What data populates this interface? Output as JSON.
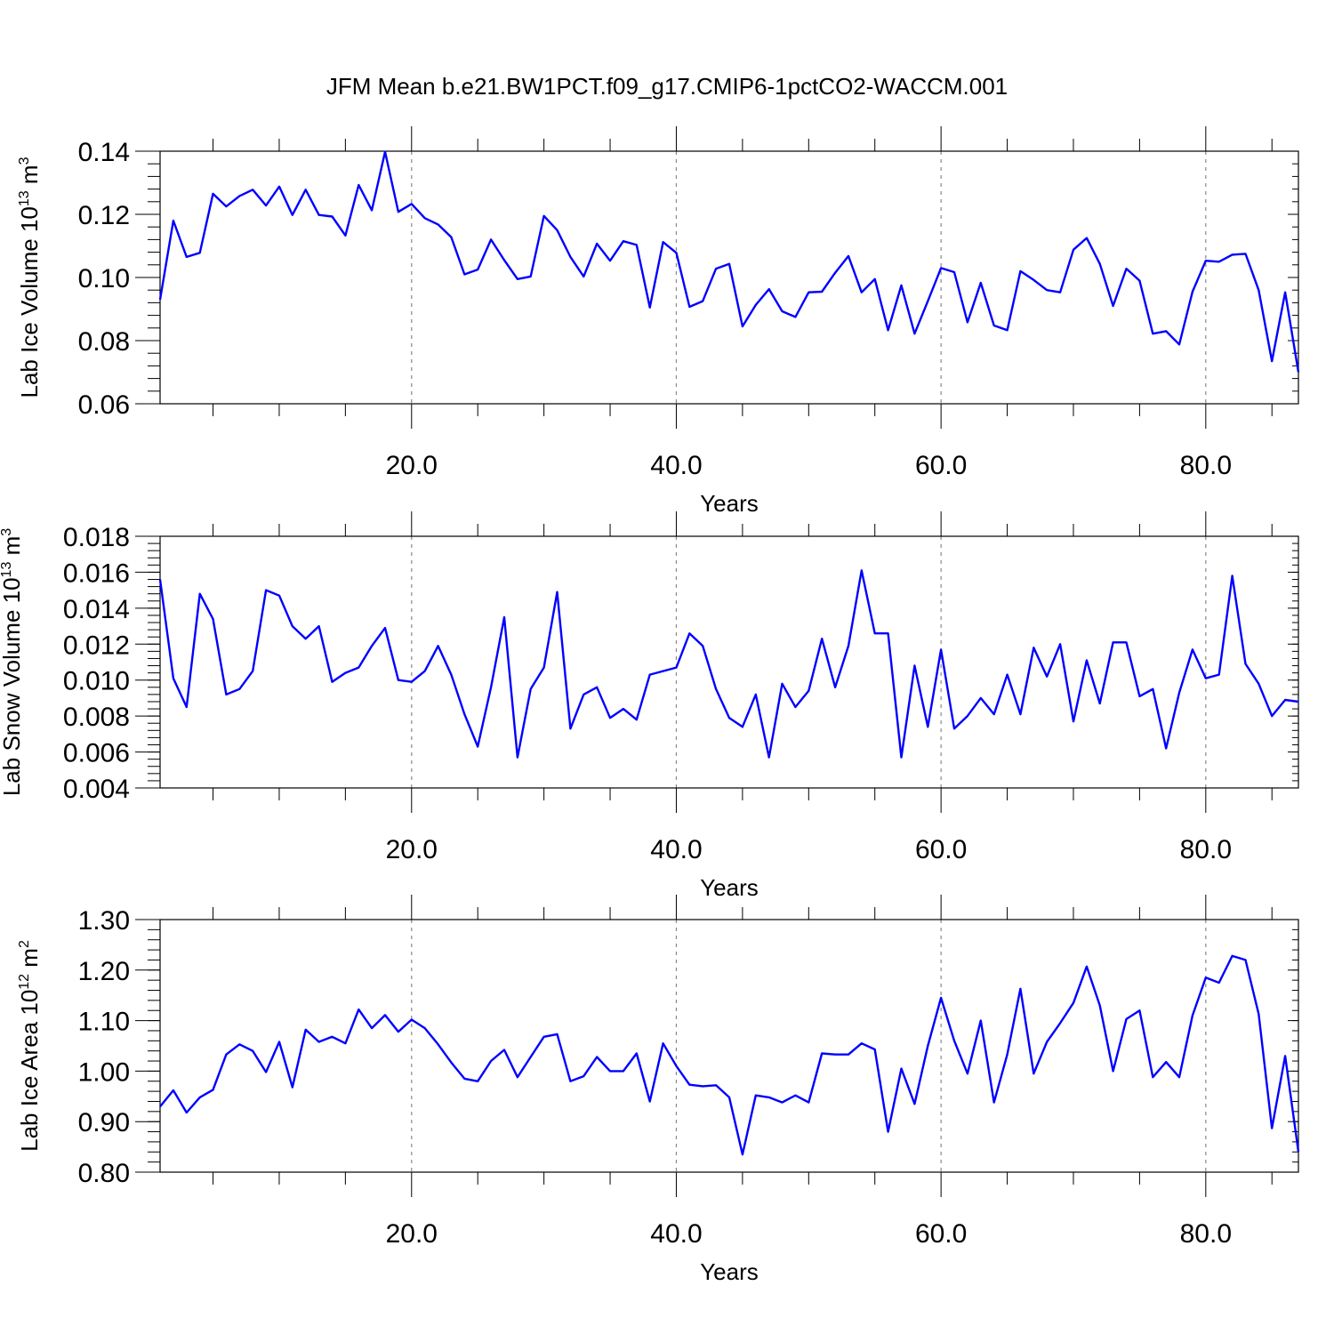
{
  "title": "JFM Mean b.e21.BW1PCT.f09_g17.CMIP6-1pctCO2-WACCM.001",
  "line_color": "#0000ff",
  "chart_data": [
    {
      "type": "line",
      "ylabel": "Lab Ice Volume 10",
      "ylabel_exp": "13",
      "ylabel_unit": " m",
      "ylabel_unit_exp": "3",
      "xlabel": "Years",
      "xlim": [
        1,
        87
      ],
      "ylim": [
        0.06,
        0.14
      ],
      "yticks": [
        0.06,
        0.08,
        0.1,
        0.12,
        0.14
      ],
      "ytick_labels": [
        "0.06",
        "0.08",
        "0.10",
        "0.12",
        "0.14"
      ],
      "xticks": [
        20,
        40,
        60,
        80
      ],
      "xtick_labels": [
        "20.0",
        "40.0",
        "60.0",
        "80.0"
      ],
      "series": [
        {
          "x": [
            1,
            2,
            3,
            4,
            5,
            6,
            7,
            8,
            9,
            10,
            11,
            12,
            13,
            14,
            15,
            16,
            17,
            18,
            19,
            20,
            21,
            22,
            23,
            24,
            25,
            26,
            27,
            28,
            29,
            30,
            31,
            32,
            33,
            34,
            35,
            36,
            37,
            38,
            39,
            40,
            41,
            42,
            43,
            44,
            45,
            46,
            47,
            48,
            49,
            50,
            51,
            52,
            53,
            54,
            55,
            56,
            57,
            58,
            59,
            60,
            61,
            62,
            63,
            64,
            65,
            66,
            67,
            68,
            69,
            70,
            71,
            72,
            73,
            74,
            75,
            76,
            77,
            78,
            79,
            80,
            81,
            82,
            83,
            84,
            85,
            86,
            87
          ],
          "values": [
            0.093,
            0.118,
            0.1065,
            0.1078,
            0.1265,
            0.1225,
            0.1258,
            0.1278,
            0.1228,
            0.1288,
            0.1198,
            0.1278,
            0.1198,
            0.1193,
            0.1133,
            0.1293,
            0.1213,
            0.1398,
            0.1208,
            0.1233,
            0.1188,
            0.1168,
            0.1128,
            0.101,
            0.1025,
            0.112,
            0.1055,
            0.0995,
            0.1003,
            0.1195,
            0.115,
            0.1065,
            0.1003,
            0.1107,
            0.1053,
            0.1115,
            0.1103,
            0.0905,
            0.1112,
            0.1078,
            0.0907,
            0.0925,
            0.1028,
            0.1043,
            0.0845,
            0.0913,
            0.0963,
            0.0893,
            0.0875,
            0.0953,
            0.0955,
            0.1015,
            0.1068,
            0.0953,
            0.0995,
            0.0833,
            0.0975,
            0.0822,
            0.0925,
            0.103,
            0.1017,
            0.0858,
            0.0983,
            0.0848,
            0.0833,
            0.102,
            0.0992,
            0.096,
            0.0953,
            0.1088,
            0.1125,
            0.1043,
            0.091,
            0.1028,
            0.099,
            0.0822,
            0.083,
            0.0788,
            0.0955,
            0.1053,
            0.105,
            0.1072,
            0.1075,
            0.096,
            0.0735,
            0.0953,
            0.07
          ]
        }
      ]
    },
    {
      "type": "line",
      "ylabel": "Lab Snow Volume 10",
      "ylabel_exp": "13",
      "ylabel_unit": " m",
      "ylabel_unit_exp": "3",
      "xlabel": "Years",
      "xlim": [
        1,
        87
      ],
      "ylim": [
        0.004,
        0.018
      ],
      "yticks": [
        0.004,
        0.006,
        0.008,
        0.01,
        0.012,
        0.014,
        0.016,
        0.018
      ],
      "ytick_labels": [
        "0.004",
        "0.006",
        "0.008",
        "0.010",
        "0.012",
        "0.014",
        "0.016",
        "0.018"
      ],
      "xticks": [
        20,
        40,
        60,
        80
      ],
      "xtick_labels": [
        "20.0",
        "40.0",
        "60.0",
        "80.0"
      ],
      "series": [
        {
          "x": [
            1,
            2,
            3,
            4,
            5,
            6,
            7,
            8,
            9,
            10,
            11,
            12,
            13,
            14,
            15,
            16,
            17,
            18,
            19,
            20,
            21,
            22,
            23,
            24,
            25,
            26,
            27,
            28,
            29,
            30,
            31,
            32,
            33,
            34,
            35,
            36,
            37,
            38,
            39,
            40,
            41,
            42,
            43,
            44,
            45,
            46,
            47,
            48,
            49,
            50,
            51,
            52,
            53,
            54,
            55,
            56,
            57,
            58,
            59,
            60,
            61,
            62,
            63,
            64,
            65,
            66,
            67,
            68,
            69,
            70,
            71,
            72,
            73,
            74,
            75,
            76,
            77,
            78,
            79,
            80,
            81,
            82,
            83,
            84,
            85,
            86,
            87
          ],
          "values": [
            0.0156,
            0.0101,
            0.0085,
            0.0148,
            0.0134,
            0.0092,
            0.0095,
            0.0105,
            0.015,
            0.0147,
            0.013,
            0.0123,
            0.013,
            0.0099,
            0.0104,
            0.0107,
            0.0119,
            0.0129,
            0.01,
            0.0099,
            0.0105,
            0.0119,
            0.0103,
            0.0081,
            0.0063,
            0.0096,
            0.0135,
            0.0057,
            0.0095,
            0.0107,
            0.0149,
            0.0073,
            0.0092,
            0.0096,
            0.0079,
            0.0084,
            0.0078,
            0.0103,
            0.0105,
            0.0107,
            0.0126,
            0.0119,
            0.0095,
            0.0079,
            0.0074,
            0.0092,
            0.0057,
            0.0098,
            0.0085,
            0.0094,
            0.0123,
            0.0096,
            0.0119,
            0.0161,
            0.0126,
            0.0126,
            0.0057,
            0.0108,
            0.0074,
            0.0117,
            0.0073,
            0.008,
            0.009,
            0.0081,
            0.0103,
            0.0081,
            0.0118,
            0.0102,
            0.012,
            0.0077,
            0.0111,
            0.0087,
            0.0121,
            0.0121,
            0.0091,
            0.0095,
            0.0062,
            0.0093,
            0.0117,
            0.0101,
            0.0103,
            0.0158,
            0.0109,
            0.0098,
            0.008,
            0.0089,
            0.0088
          ]
        }
      ]
    },
    {
      "type": "line",
      "ylabel": "Lab Ice Area 10",
      "ylabel_exp": "12",
      "ylabel_unit": " m",
      "ylabel_unit_exp": "2",
      "xlabel": "Years",
      "xlim": [
        1,
        87
      ],
      "ylim": [
        0.8,
        1.3
      ],
      "yticks": [
        0.8,
        0.9,
        1.0,
        1.1,
        1.2,
        1.3
      ],
      "ytick_labels": [
        "0.80",
        "0.90",
        "1.00",
        "1.10",
        "1.20",
        "1.30"
      ],
      "xticks": [
        20,
        40,
        60,
        80
      ],
      "xtick_labels": [
        "20.0",
        "40.0",
        "60.0",
        "80.0"
      ],
      "series": [
        {
          "x": [
            1,
            2,
            3,
            4,
            5,
            6,
            7,
            8,
            9,
            10,
            11,
            12,
            13,
            14,
            15,
            16,
            17,
            18,
            19,
            20,
            21,
            22,
            23,
            24,
            25,
            26,
            27,
            28,
            29,
            30,
            31,
            32,
            33,
            34,
            35,
            36,
            37,
            38,
            39,
            40,
            41,
            42,
            43,
            44,
            45,
            46,
            47,
            48,
            49,
            50,
            51,
            52,
            53,
            54,
            55,
            56,
            57,
            58,
            59,
            60,
            61,
            62,
            63,
            64,
            65,
            66,
            67,
            68,
            69,
            70,
            71,
            72,
            73,
            74,
            75,
            76,
            77,
            78,
            79,
            80,
            81,
            82,
            83,
            84,
            85,
            86,
            87
          ],
          "values": [
            0.93,
            0.962,
            0.918,
            0.948,
            0.963,
            1.033,
            1.053,
            1.04,
            0.998,
            1.058,
            0.968,
            1.082,
            1.058,
            1.068,
            1.055,
            1.122,
            1.085,
            1.111,
            1.078,
            1.102,
            1.085,
            1.053,
            1.017,
            0.985,
            0.98,
            1.02,
            1.042,
            0.988,
            1.028,
            1.068,
            1.073,
            0.98,
            0.99,
            1.028,
            1.0,
            1.0,
            1.035,
            0.94,
            1.055,
            1.01,
            0.973,
            0.97,
            0.972,
            0.948,
            0.835,
            0.952,
            0.948,
            0.938,
            0.952,
            0.938,
            1.035,
            1.033,
            1.033,
            1.055,
            1.043,
            0.88,
            1.005,
            0.935,
            1.05,
            1.145,
            1.06,
            0.995,
            1.1,
            0.938,
            1.033,
            1.163,
            0.995,
            1.058,
            1.095,
            1.135,
            1.207,
            1.13,
            1.0,
            1.103,
            1.12,
            0.988,
            1.018,
            0.988,
            1.11,
            1.185,
            1.175,
            1.228,
            1.22,
            1.113,
            0.887,
            1.03,
            0.84
          ]
        }
      ]
    }
  ]
}
